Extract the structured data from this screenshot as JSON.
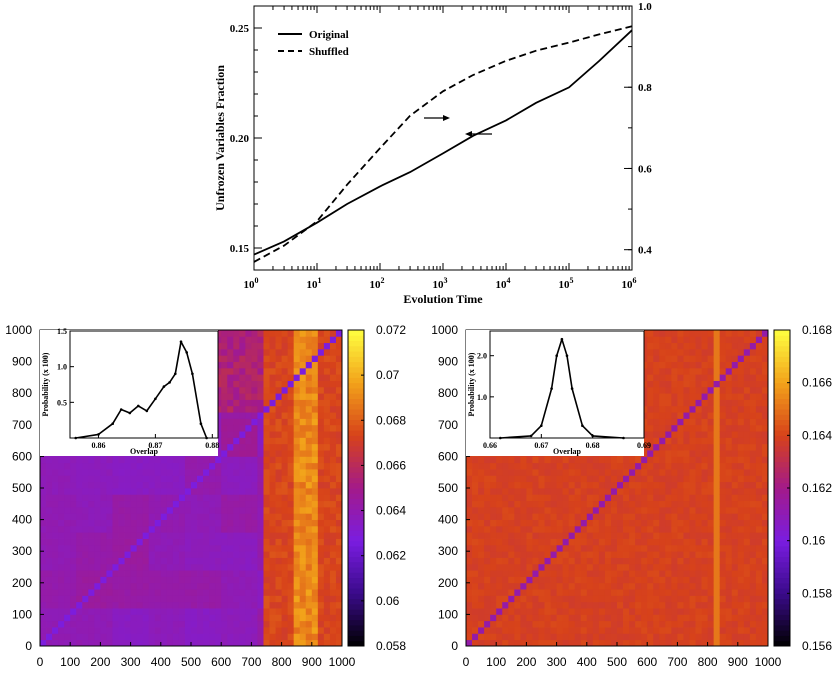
{
  "chart_data": [
    {
      "type": "line",
      "xlabel": "Evolution Time",
      "ylabel": "Unfrozen Variables Fraction",
      "x_scale": "log10",
      "xlim": [
        1,
        1000000
      ],
      "ylim_left": [
        0.14,
        0.26
      ],
      "ylim_right": [
        0.35,
        1.0
      ],
      "xticks": [
        "10^0",
        "10^1",
        "10^2",
        "10^3",
        "10^4",
        "10^5",
        "10^6"
      ],
      "yticks_left": [
        "0.15",
        "0.20",
        "0.25"
      ],
      "yticks_right": [
        "0.4",
        "0.6",
        "0.8",
        "1.0"
      ],
      "legend_position": "top-left",
      "series": [
        {
          "name": "Original",
          "axis": "left",
          "style": "solid",
          "x": [
            1,
            3,
            10,
            30,
            100,
            300,
            1000,
            3000,
            10000,
            30000,
            100000,
            300000,
            1000000
          ],
          "y": [
            0.147,
            0.153,
            0.1615,
            0.17,
            0.178,
            0.1845,
            0.193,
            0.201,
            0.208,
            0.216,
            0.223,
            0.235,
            0.249
          ]
        },
        {
          "name": "Shuffled",
          "axis": "right",
          "style": "dashed",
          "x": [
            1,
            3,
            10,
            30,
            100,
            300,
            1000,
            3000,
            10000,
            30000,
            100000,
            300000,
            1000000
          ],
          "y": [
            0.37,
            0.41,
            0.47,
            0.56,
            0.65,
            0.73,
            0.79,
            0.83,
            0.865,
            0.89,
            0.91,
            0.93,
            0.95
          ]
        }
      ]
    },
    {
      "type": "heatmap",
      "xlim": [
        0,
        1000
      ],
      "ylim": [
        0,
        1000
      ],
      "xticks": [
        "0",
        "100",
        "200",
        "300",
        "400",
        "500",
        "600",
        "700",
        "800",
        "900",
        "1000"
      ],
      "yticks": [
        "0",
        "100",
        "200",
        "300",
        "400",
        "500",
        "600",
        "700",
        "800",
        "900",
        "1000"
      ],
      "colorbar_range": [
        0.058,
        0.072
      ],
      "colorbar_ticks": [
        "0.058",
        "0.06",
        "0.062",
        "0.064",
        "0.066",
        "0.068",
        "0.07",
        "0.072"
      ],
      "colormap": [
        "#000000",
        "#3a0a8a",
        "#7a1de0",
        "#a31a8a",
        "#d7421a",
        "#f2a21a",
        "#ffff40"
      ],
      "inset": {
        "type": "line",
        "xlabel": "Overlap",
        "ylabel": "Probability (x 100)",
        "xlim": [
          0.855,
          0.881
        ],
        "ylim": [
          0,
          1.5
        ],
        "xticks": [
          "0.86",
          "0.87",
          "0.88"
        ],
        "yticks": [
          "0.5",
          "1.0",
          "1.5"
        ],
        "x": [
          0.856,
          0.86,
          0.8625,
          0.864,
          0.8655,
          0.867,
          0.8685,
          0.87,
          0.8715,
          0.8725,
          0.8735,
          0.8745,
          0.8755,
          0.8765,
          0.878,
          0.879
        ],
        "y": [
          0.0,
          0.05,
          0.2,
          0.4,
          0.35,
          0.45,
          0.38,
          0.55,
          0.72,
          0.78,
          0.9,
          1.35,
          1.2,
          0.9,
          0.2,
          0.0
        ]
      }
    },
    {
      "type": "heatmap",
      "xlim": [
        0,
        1000
      ],
      "ylim": [
        0,
        1000
      ],
      "xticks": [
        "0",
        "100",
        "200",
        "300",
        "400",
        "500",
        "600",
        "700",
        "800",
        "900",
        "1000"
      ],
      "yticks": [
        "0",
        "100",
        "200",
        "300",
        "400",
        "500",
        "600",
        "700",
        "800",
        "900",
        "1000"
      ],
      "colorbar_range": [
        0.156,
        0.168
      ],
      "colorbar_ticks": [
        "0.156",
        "0.158",
        "0.16",
        "0.162",
        "0.164",
        "0.166",
        "0.168"
      ],
      "colormap": [
        "#000000",
        "#3a0a8a",
        "#7a1de0",
        "#a31a8a",
        "#d7421a",
        "#f2a21a",
        "#ffff40"
      ],
      "inset": {
        "type": "line",
        "xlabel": "Overlap",
        "ylabel": "Probability (x 100)",
        "xlim": [
          0.66,
          0.69
        ],
        "ylim": [
          0,
          2.6
        ],
        "xticks": [
          "0.66",
          "0.67",
          "0.68",
          "0.69"
        ],
        "yticks": [
          "1.0",
          "2.0"
        ],
        "x": [
          0.662,
          0.668,
          0.67,
          0.672,
          0.673,
          0.674,
          0.675,
          0.676,
          0.678,
          0.68,
          0.686
        ],
        "y": [
          0.0,
          0.05,
          0.3,
          1.2,
          2.0,
          2.4,
          2.0,
          1.2,
          0.3,
          0.05,
          0.0
        ]
      }
    }
  ]
}
